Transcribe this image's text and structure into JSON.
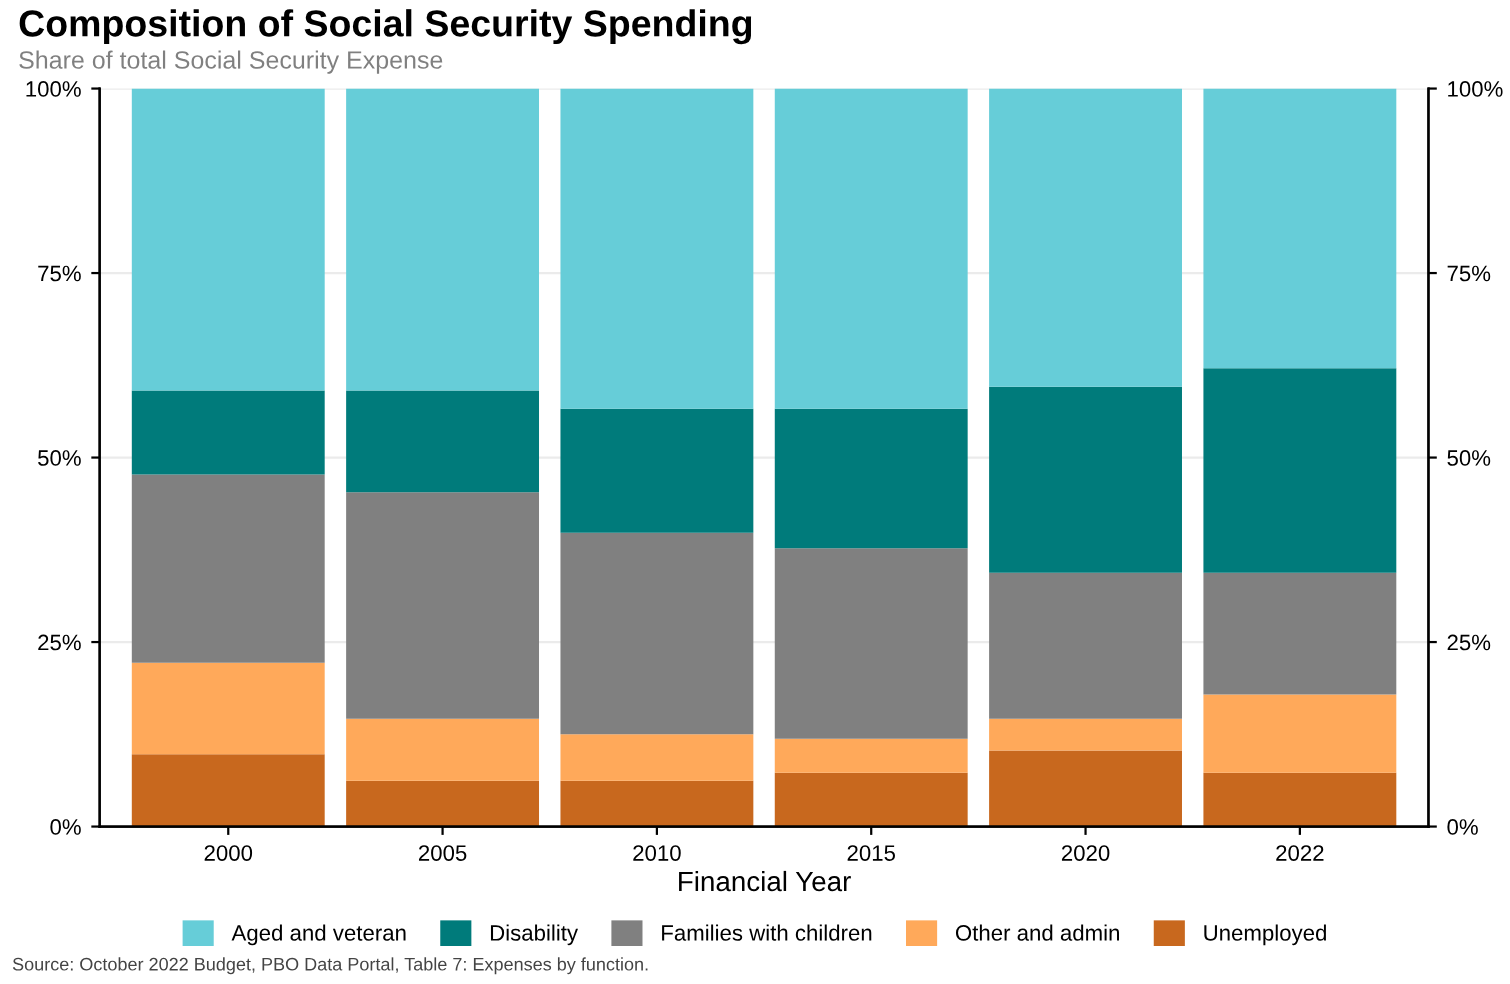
{
  "chart_data": {
    "type": "bar",
    "title": "Composition of Social Security Spending",
    "subtitle": "Share of total Social Security Expense",
    "xlabel": "Financial Year",
    "categories": [
      "2000",
      "2005",
      "2010",
      "2015",
      "2020",
      "2022"
    ],
    "stacked": true,
    "series": [
      {
        "name": "Unemployed",
        "color": "#c8681e",
        "values": [
          9.8,
          6.2,
          6.2,
          7.3,
          10.3,
          7.3
        ]
      },
      {
        "name": "Other and admin",
        "color": "#ffa95a",
        "values": [
          12.4,
          8.4,
          6.3,
          4.6,
          4.3,
          10.6
        ]
      },
      {
        "name": "Families with children",
        "color": "#808080",
        "values": [
          25.5,
          30.7,
          27.3,
          25.8,
          19.8,
          16.5
        ]
      },
      {
        "name": "Disability",
        "color": "#007b7b",
        "values": [
          11.4,
          13.8,
          16.8,
          18.9,
          25.2,
          27.7
        ]
      },
      {
        "name": "Aged and veteran",
        "color": "#66cdd8",
        "values": [
          40.9,
          40.9,
          43.4,
          43.4,
          40.4,
          37.9
        ]
      }
    ],
    "ylim": [
      0,
      100
    ],
    "yticks": [
      {
        "value": 0,
        "label": "0%"
      },
      {
        "value": 25,
        "label": "25%"
      },
      {
        "value": 50,
        "label": "50%"
      },
      {
        "value": 75,
        "label": "75%"
      },
      {
        "value": 100,
        "label": "100%"
      }
    ],
    "y2lim": [
      0,
      100
    ],
    "y2ticks": [
      {
        "value": 0,
        "label": "0%"
      },
      {
        "value": 25,
        "label": "25%"
      },
      {
        "value": 50,
        "label": "50%"
      },
      {
        "value": 75,
        "label": "75%"
      },
      {
        "value": 100,
        "label": "100%"
      }
    ],
    "grid": "y",
    "legend": "bottom",
    "annotations": [
      "Source: October 2022 Budget, PBO Data Portal, Table 7: Expenses by function."
    ]
  }
}
